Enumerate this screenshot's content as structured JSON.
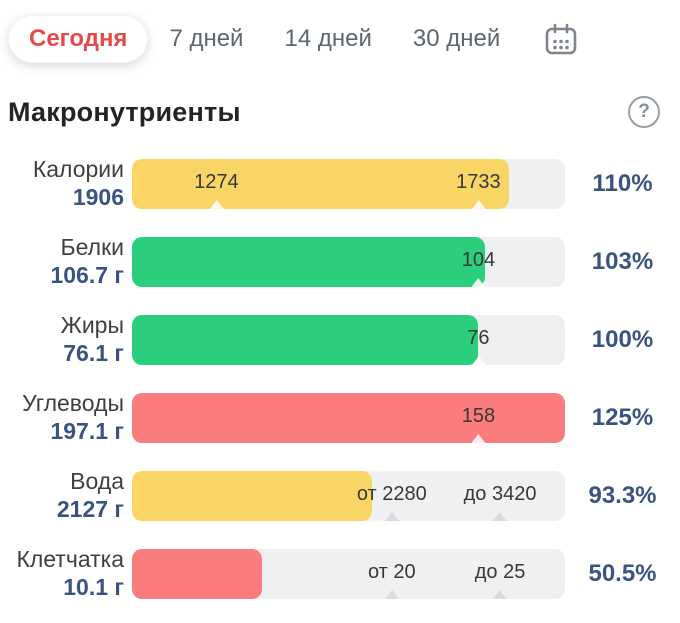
{
  "tabbar": {
    "tabs": [
      {
        "label": "Сегодня",
        "active": true
      },
      {
        "label": "7 дней",
        "active": false
      },
      {
        "label": "14 дней",
        "active": false
      },
      {
        "label": "30 дней",
        "active": false
      }
    ],
    "calendar_icon": "calendar-icon"
  },
  "header": {
    "title": "Макронутриенты",
    "help_label": "?"
  },
  "colors": {
    "yellow": "#F8D565",
    "green": "#2BCE7C",
    "red": "#FA7C7C",
    "track": "#EFF0F2",
    "accent_navy": "#3A5380",
    "tab_active_red": "#E64949",
    "tab_gray": "#5C6670"
  },
  "rows": [
    {
      "name": "Калории",
      "value": "1906",
      "percent": "110%",
      "color": "yellow",
      "fill_percent": 87,
      "markers": [
        {
          "label": "1274",
          "position_percent": 19.5
        },
        {
          "label": "1733",
          "position_percent": 80
        }
      ]
    },
    {
      "name": "Белки",
      "value": "106.7 г",
      "percent": "103%",
      "color": "green",
      "fill_percent": 81.5,
      "markers": [
        {
          "label": "104",
          "position_percent": 80
        }
      ]
    },
    {
      "name": "Жиры",
      "value": "76.1 г",
      "percent": "100%",
      "color": "green",
      "fill_percent": 80,
      "markers": [
        {
          "label": "76",
          "position_percent": 80
        }
      ]
    },
    {
      "name": "Углеводы",
      "value": "197.1 г",
      "percent": "125%",
      "color": "red",
      "fill_percent": 100,
      "markers": [
        {
          "label": "158",
          "position_percent": 80
        }
      ]
    },
    {
      "name": "Вода",
      "value": "2127 г",
      "percent": "93.3%",
      "color": "yellow",
      "fill_percent": 55.5,
      "markers": [
        {
          "label": "от 2280",
          "position_percent": 60
        },
        {
          "label": "до 3420",
          "position_percent": 85
        }
      ]
    },
    {
      "name": "Клетчатка",
      "value": "10.1 г",
      "percent": "50.5%",
      "color": "red",
      "fill_percent": 30,
      "markers": [
        {
          "label": "от 20",
          "position_percent": 60
        },
        {
          "label": "до 25",
          "position_percent": 85
        }
      ]
    }
  ]
}
